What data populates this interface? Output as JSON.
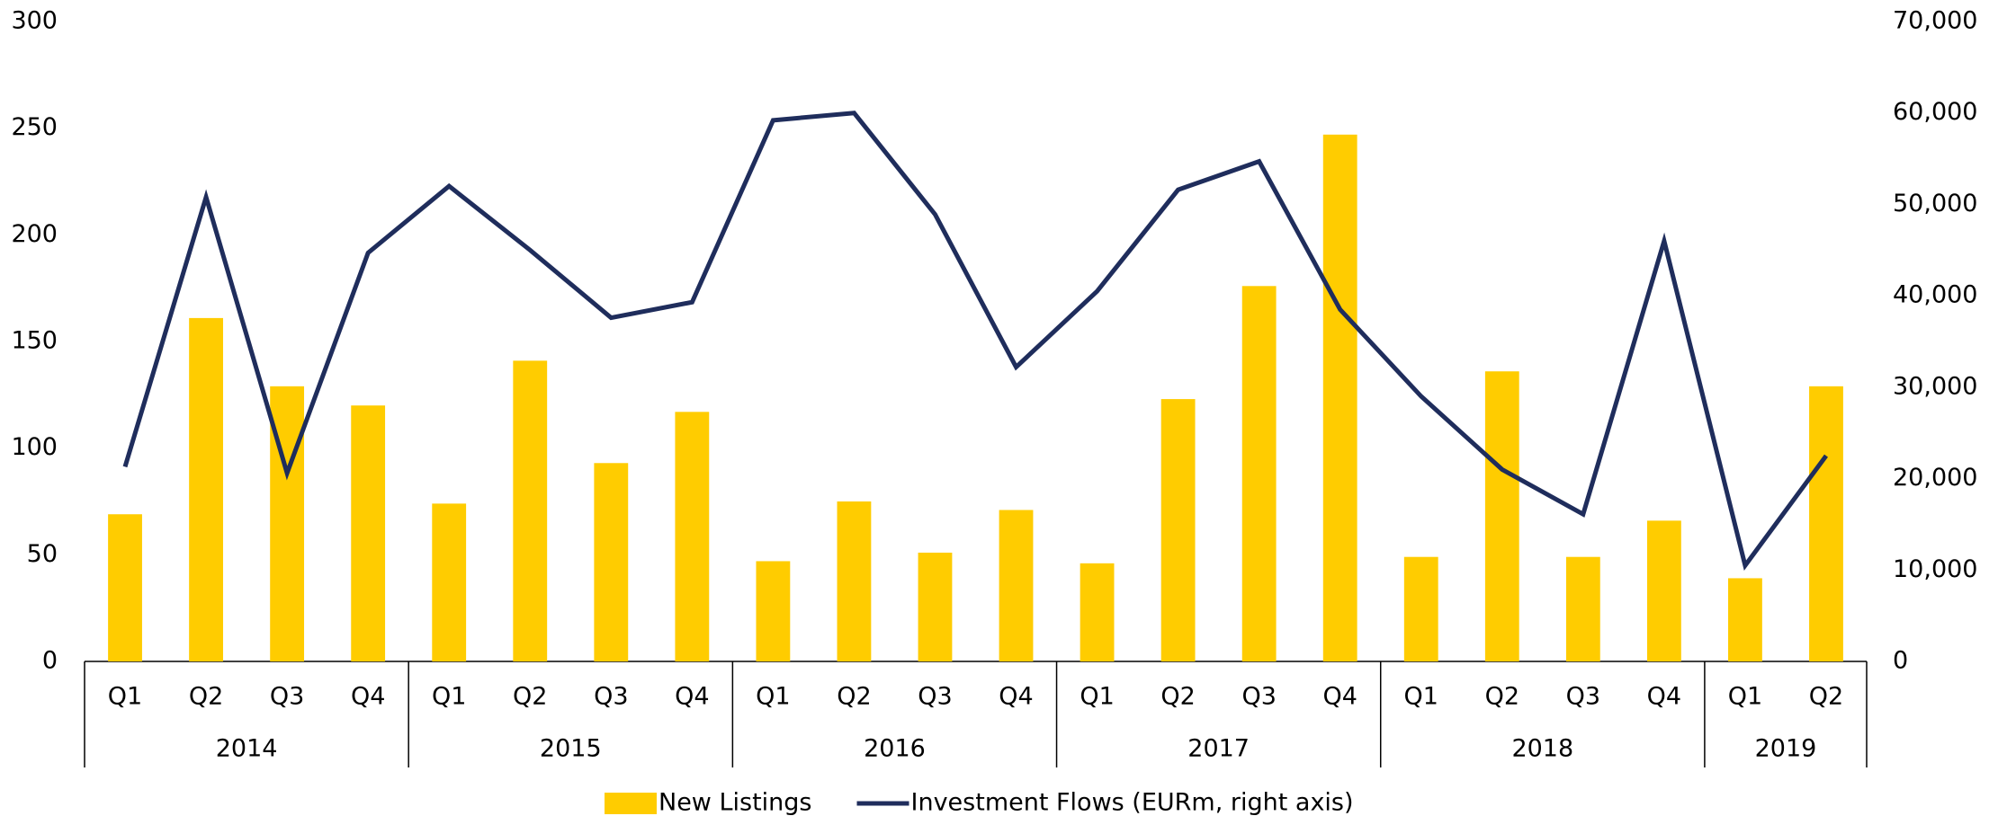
{
  "chart_data": {
    "type": "bar-line",
    "groups": [
      {
        "name": "2014",
        "categories": [
          "Q1",
          "Q2",
          "Q3",
          "Q4"
        ]
      },
      {
        "name": "2015",
        "categories": [
          "Q1",
          "Q2",
          "Q3",
          "Q4"
        ]
      },
      {
        "name": "2016",
        "categories": [
          "Q1",
          "Q2",
          "Q3",
          "Q4"
        ]
      },
      {
        "name": "2017",
        "categories": [
          "Q1",
          "Q2",
          "Q3",
          "Q4"
        ]
      },
      {
        "name": "2018",
        "categories": [
          "Q1",
          "Q2",
          "Q3",
          "Q4"
        ]
      },
      {
        "name": "2019",
        "categories": [
          "Q1",
          "Q2"
        ]
      }
    ],
    "series": [
      {
        "name": "New Listings",
        "type": "bar",
        "color": "#FFCC00",
        "axis": "y",
        "values": [
          69,
          161,
          129,
          120,
          74,
          141,
          93,
          117,
          47,
          75,
          51,
          71,
          46,
          123,
          176,
          247,
          49,
          136,
          49,
          66,
          39,
          129
        ]
      },
      {
        "name": "Investment Flows (EURm, right axis)",
        "type": "line",
        "color": "#1F2D5C",
        "axis": "y2",
        "values": [
          21300,
          50800,
          20600,
          44700,
          52000,
          45000,
          37600,
          39300,
          59200,
          60000,
          48900,
          32200,
          40500,
          51600,
          54700,
          38500,
          29000,
          21000,
          16100,
          46000,
          10500,
          22500
        ]
      }
    ],
    "ylim": [
      0,
      300
    ],
    "yticks": [
      0,
      50,
      100,
      150,
      200,
      250,
      300
    ],
    "y2lim": [
      0,
      70000
    ],
    "y2ticks": [
      0,
      {
        "value": 10000,
        "label": "10,000"
      },
      {
        "value": 20000,
        "label": "20,000"
      },
      {
        "value": 30000,
        "label": "30,000"
      },
      {
        "value": 40000,
        "label": "40,000"
      },
      {
        "value": 50000,
        "label": "50,000"
      },
      {
        "value": 60000,
        "label": "60,000"
      },
      {
        "value": 70000,
        "label": "70,000"
      }
    ],
    "legend": "bottom"
  }
}
